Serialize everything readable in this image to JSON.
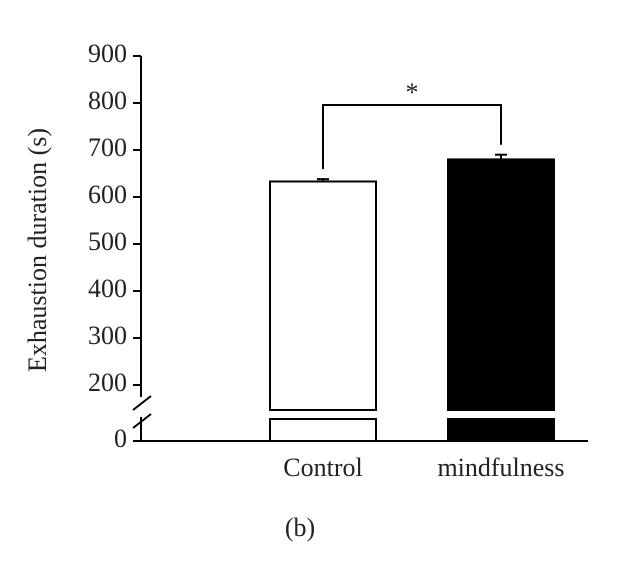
{
  "chart_data": {
    "type": "bar",
    "y_label": "Exhaustion duration (s)",
    "categories": [
      "Control",
      "mindfulness"
    ],
    "values": [
      633,
      680
    ],
    "errors": [
      5,
      10
    ],
    "colors": [
      "#ffffff",
      "#000000"
    ],
    "edge_color": "#000000",
    "ylim": [
      0,
      900
    ],
    "yticks": [
      0,
      200,
      300,
      400,
      500,
      600,
      700,
      800,
      900
    ],
    "axis_break": true,
    "annotation": "*",
    "panel_label": "(b)"
  }
}
